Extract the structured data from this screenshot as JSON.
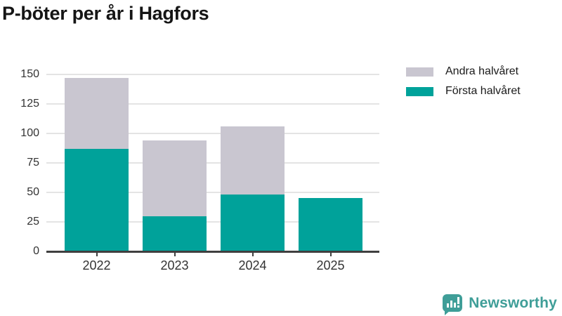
{
  "title": "P-böter per år i Hagfors",
  "chart_data": {
    "type": "bar",
    "stacked": true,
    "title": "P-böter per år i Hagfors",
    "categories": [
      "2022",
      "2023",
      "2024",
      "2025"
    ],
    "series": [
      {
        "name": "Första halvåret",
        "color": "#00a29a",
        "values": [
          87,
          30,
          48,
          45
        ]
      },
      {
        "name": "Andra halvåret",
        "color": "#c9c6d0",
        "values": [
          60,
          64,
          58,
          0
        ]
      }
    ],
    "xlabel": "",
    "ylabel": "",
    "ylim": [
      0,
      150
    ],
    "y_ticks": [
      0,
      25,
      50,
      75,
      100,
      125,
      150
    ],
    "grid": true,
    "legend_position": "top-right"
  },
  "legend": {
    "items": [
      "Andra halvåret",
      "Första halvåret"
    ]
  },
  "logo": {
    "text": "Newsworthy"
  },
  "colors": {
    "first_half": "#00a29a",
    "second_half": "#c9c6d0",
    "brand": "#3f9e98",
    "grid": "#e4e4e4",
    "axis": "#3f3f3f"
  }
}
